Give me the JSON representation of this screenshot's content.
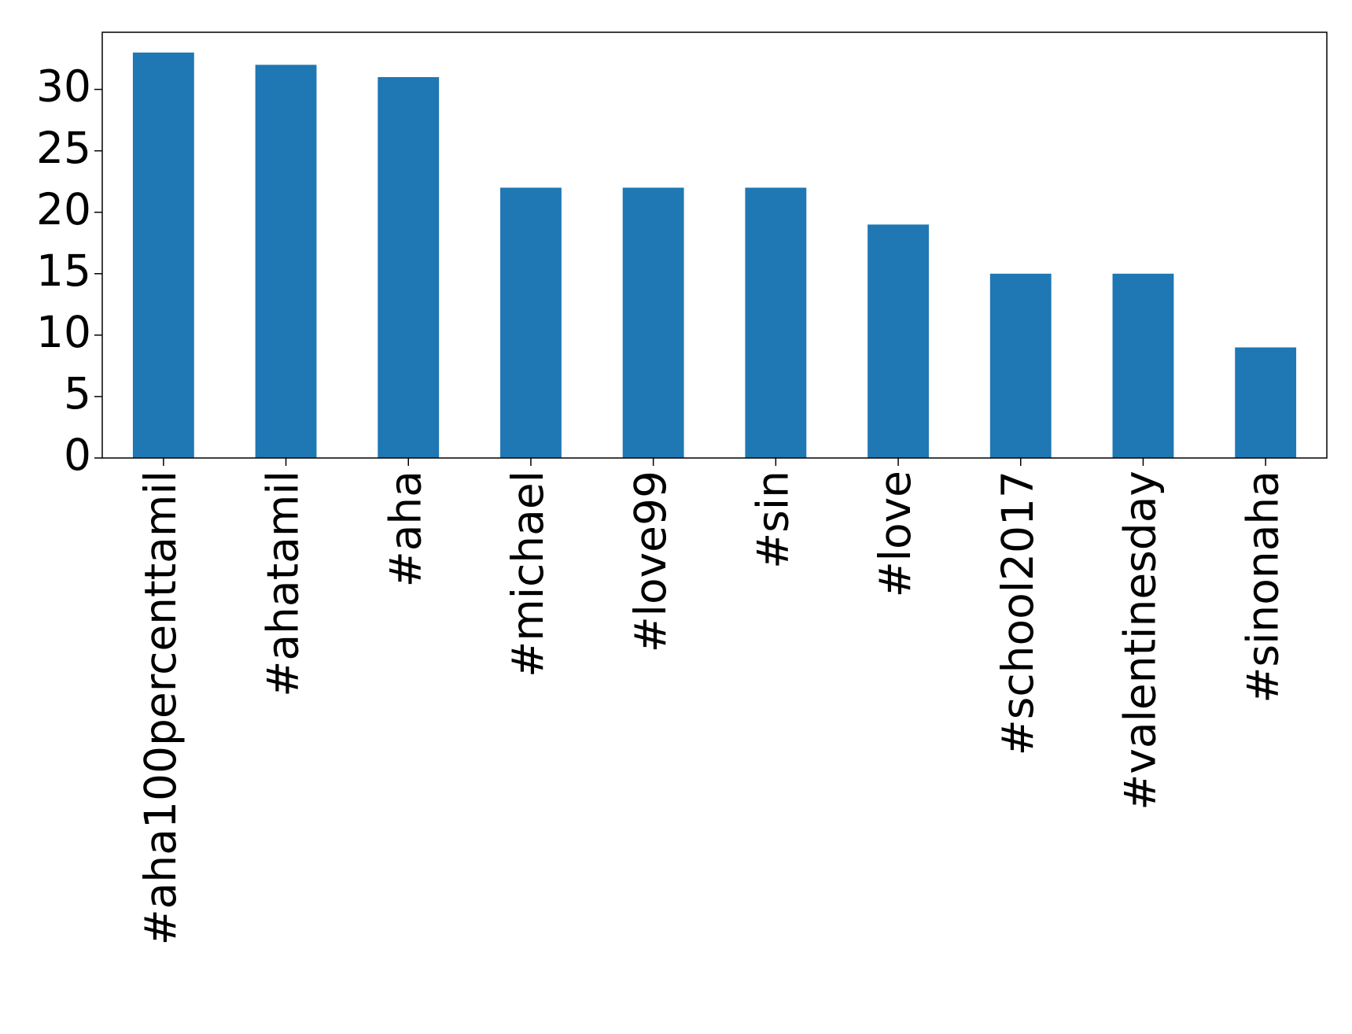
{
  "chart_data": {
    "type": "bar",
    "categories": [
      "#aha100percenttamil",
      "#ahatamil",
      "#aha",
      "#michael",
      "#love99",
      "#sin",
      "#love",
      "#school2017",
      "#valentinesday",
      "#sinonaha"
    ],
    "values": [
      33,
      32,
      31,
      22,
      22,
      22,
      19,
      15,
      15,
      9
    ],
    "color": "#1f77b4",
    "ylim": [
      0,
      34.65
    ],
    "yticks": [
      0,
      5,
      10,
      15,
      20,
      25,
      30
    ],
    "grid": false
  }
}
